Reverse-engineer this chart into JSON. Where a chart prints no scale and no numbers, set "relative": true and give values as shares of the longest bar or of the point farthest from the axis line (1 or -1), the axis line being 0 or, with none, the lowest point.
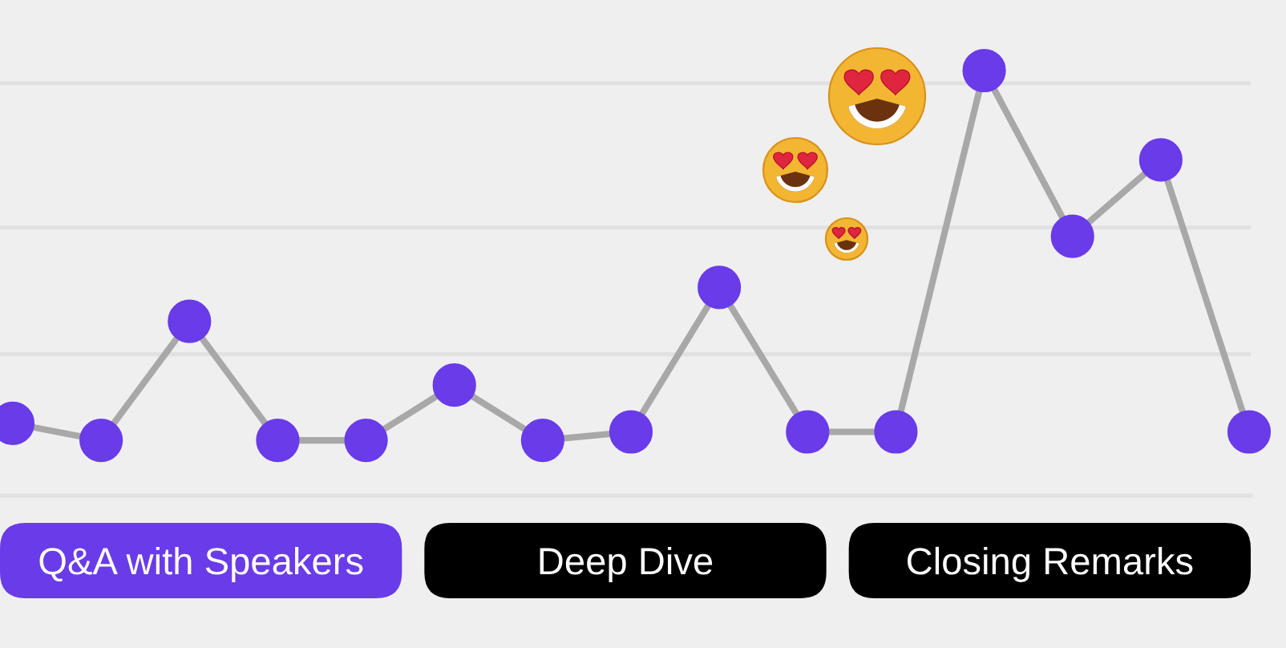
{
  "chart_data": {
    "type": "line",
    "relative": true,
    "categories": [
      null,
      null,
      null,
      null,
      null,
      null,
      null,
      null,
      null,
      null,
      null,
      null,
      null,
      null,
      null
    ],
    "series": [
      {
        "color": "#a8a8a8",
        "colors": [
          "#6a3be8",
          "#6a3be8",
          "#6a3be8",
          "#6a3be8",
          "#6a3be8",
          "#6a3be8",
          "#6a3be8",
          "#6a3be8",
          "#6a3be8",
          "#6a3be8",
          "#6a3be8",
          "#6a3be8",
          "#6a3be8",
          "#6a3be8",
          "#6a3be8"
        ],
        "values": [
          0.17,
          0.13,
          0.41,
          0.13,
          0.13,
          0.26,
          0.13,
          0.15,
          0.49,
          0.15,
          0.15,
          1,
          0.61,
          0.79,
          0.15
        ]
      }
    ],
    "annotations": [
      "Q&A with Speakers",
      "Deep Dive",
      "Closing Remarks"
    ],
    "marker": "circle",
    "line_style": "solid",
    "grid": "y"
  }
}
